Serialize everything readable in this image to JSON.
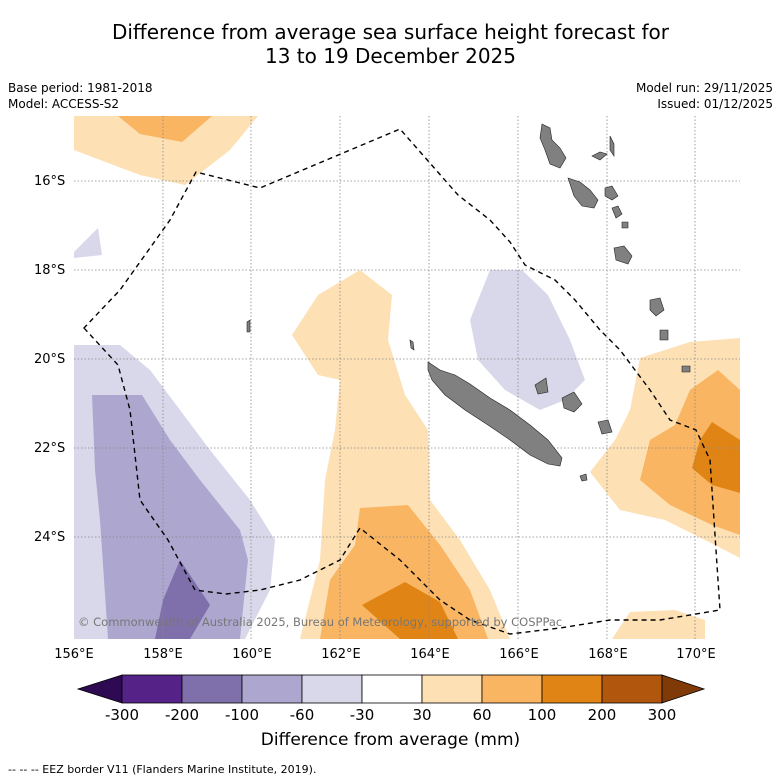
{
  "title_line1": "Difference from average sea surface height forecast for",
  "title_line2": "13 to 19 December 2025",
  "base_period": "Base period: 1981-2018",
  "model": "Model: ACCESS-S2",
  "model_run": "Model run: 29/11/2025",
  "issued": "Issued: 01/12/2025",
  "copyright": "© Commonwealth of Australia 2025, Bureau of Meteorology, supported by COSPPac",
  "footnote": "--  --  -- EEZ border V11 (Flanders Marine Institute, 2019).",
  "lat_labels": [
    "16°S",
    "18°S",
    "20°S",
    "22°S",
    "24°S"
  ],
  "lon_labels": [
    "156°E",
    "158°E",
    "160°E",
    "162°E",
    "164°E",
    "166°E",
    "168°E",
    "170°E"
  ],
  "colorbar": {
    "title": "Difference from average (mm)",
    "tick_labels": [
      "-300",
      "-200",
      "-100",
      "-60",
      "-30",
      "30",
      "60",
      "100",
      "200",
      "300"
    ],
    "colors": [
      "#552288",
      "#7f6fab",
      "#ada6cf",
      "#d8d8ea",
      "#ffffff",
      "#fde0b4",
      "#f9b561",
      "#e08415",
      "#b1560d"
    ],
    "under_color": "#2d0a52",
    "over_color": "#7f3a08"
  },
  "colors": {
    "land": "#808080",
    "eez_border": "#000000",
    "grid": "#888888"
  }
}
